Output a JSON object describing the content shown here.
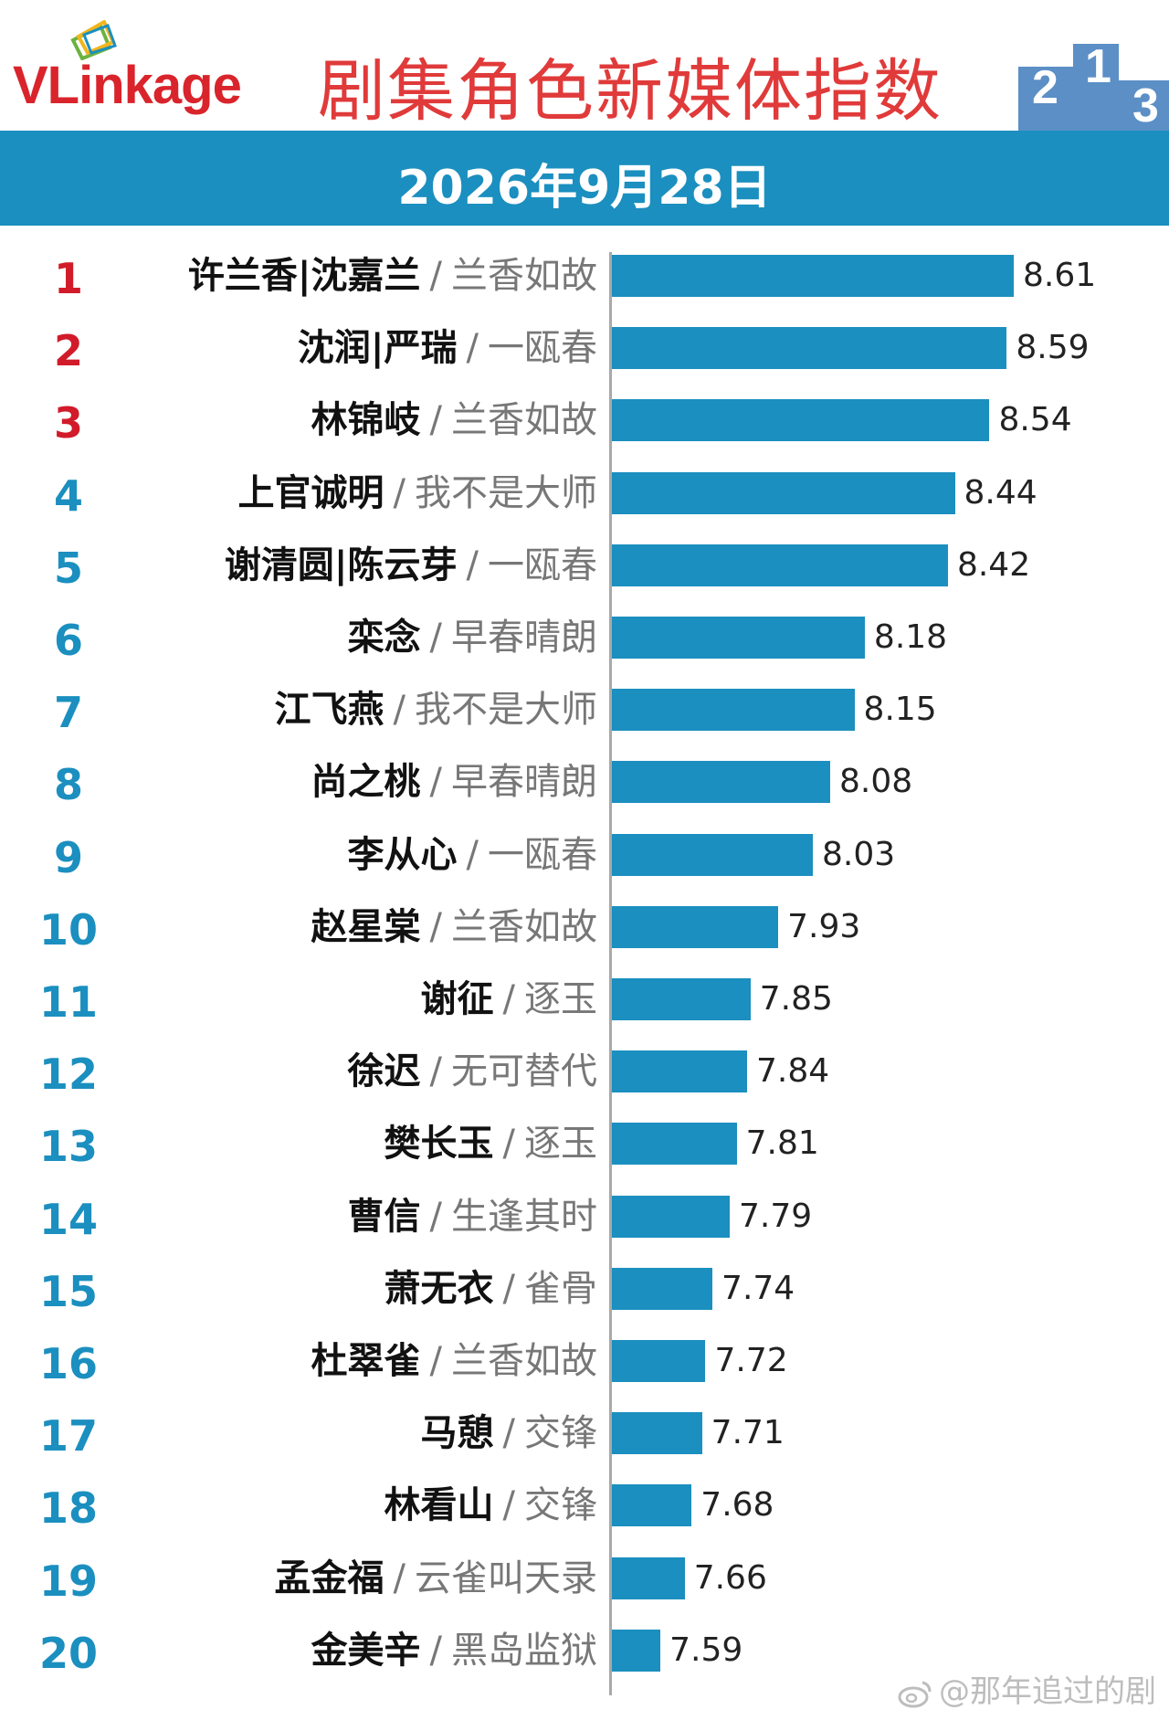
{
  "header": {
    "logo_text": "VLinkage",
    "title": "剧集角色新媒体指数"
  },
  "date": "2026年9月28日",
  "watermark": "@那年追过的剧",
  "colors": {
    "bar": "#1b8fbf",
    "rank_top": "#d11b2a",
    "rank_other": "#1b8fbf",
    "title": "#e03a3a"
  },
  "chart_data": {
    "type": "bar",
    "orientation": "horizontal",
    "title": "剧集角色新媒体指数",
    "subtitle": "2026年9月28日",
    "xlabel": "",
    "ylabel": "",
    "xlim": [
      6.8,
      8.95
    ],
    "grid": false,
    "rows": [
      {
        "rank": "1",
        "name": "许兰香|沈嘉兰",
        "show": "兰香如故",
        "value": 8.61,
        "label": "8.61"
      },
      {
        "rank": "2",
        "name": "沈润|严瑞",
        "show": "一瓯春",
        "value": 8.59,
        "label": "8.59"
      },
      {
        "rank": "3",
        "name": "林锦岐",
        "show": "兰香如故",
        "value": 8.54,
        "label": "8.54"
      },
      {
        "rank": "4",
        "name": "上官诚明",
        "show": "我不是大师",
        "value": 8.44,
        "label": "8.44"
      },
      {
        "rank": "5",
        "name": "谢清圆|陈云芽",
        "show": "一瓯春",
        "value": 8.42,
        "label": "8.42"
      },
      {
        "rank": "6",
        "name": "栾念",
        "show": "早春晴朗",
        "value": 8.18,
        "label": "8.18"
      },
      {
        "rank": "7",
        "name": "江飞燕",
        "show": "我不是大师",
        "value": 8.15,
        "label": "8.15"
      },
      {
        "rank": "8",
        "name": "尚之桃",
        "show": "早春晴朗",
        "value": 8.08,
        "label": "8.08"
      },
      {
        "rank": "9",
        "name": "李从心",
        "show": "一瓯春",
        "value": 8.03,
        "label": "8.03"
      },
      {
        "rank": "10",
        "name": "赵星棠",
        "show": "兰香如故",
        "value": 7.93,
        "label": "7.93"
      },
      {
        "rank": "11",
        "name": "谢征",
        "show": "逐玉",
        "value": 7.85,
        "label": "7.85"
      },
      {
        "rank": "12",
        "name": "徐迟",
        "show": "无可替代",
        "value": 7.84,
        "label": "7.84"
      },
      {
        "rank": "13",
        "name": "樊长玉",
        "show": "逐玉",
        "value": 7.81,
        "label": "7.81"
      },
      {
        "rank": "14",
        "name": "曹信",
        "show": "生逢其时",
        "value": 7.79,
        "label": "7.79"
      },
      {
        "rank": "15",
        "name": "萧无衣",
        "show": "雀骨",
        "value": 7.74,
        "label": "7.74"
      },
      {
        "rank": "16",
        "name": "杜翠雀",
        "show": "兰香如故",
        "value": 7.72,
        "label": "7.72"
      },
      {
        "rank": "17",
        "name": "马憩",
        "show": "交锋",
        "value": 7.71,
        "label": "7.71"
      },
      {
        "rank": "18",
        "name": "林看山",
        "show": "交锋",
        "value": 7.68,
        "label": "7.68"
      },
      {
        "rank": "19",
        "name": "孟金福",
        "show": "云雀叫天录",
        "value": 7.66,
        "label": "7.66"
      },
      {
        "rank": "20",
        "name": "金美辛",
        "show": "黑岛监狱",
        "value": 7.59,
        "label": "7.59"
      }
    ]
  }
}
